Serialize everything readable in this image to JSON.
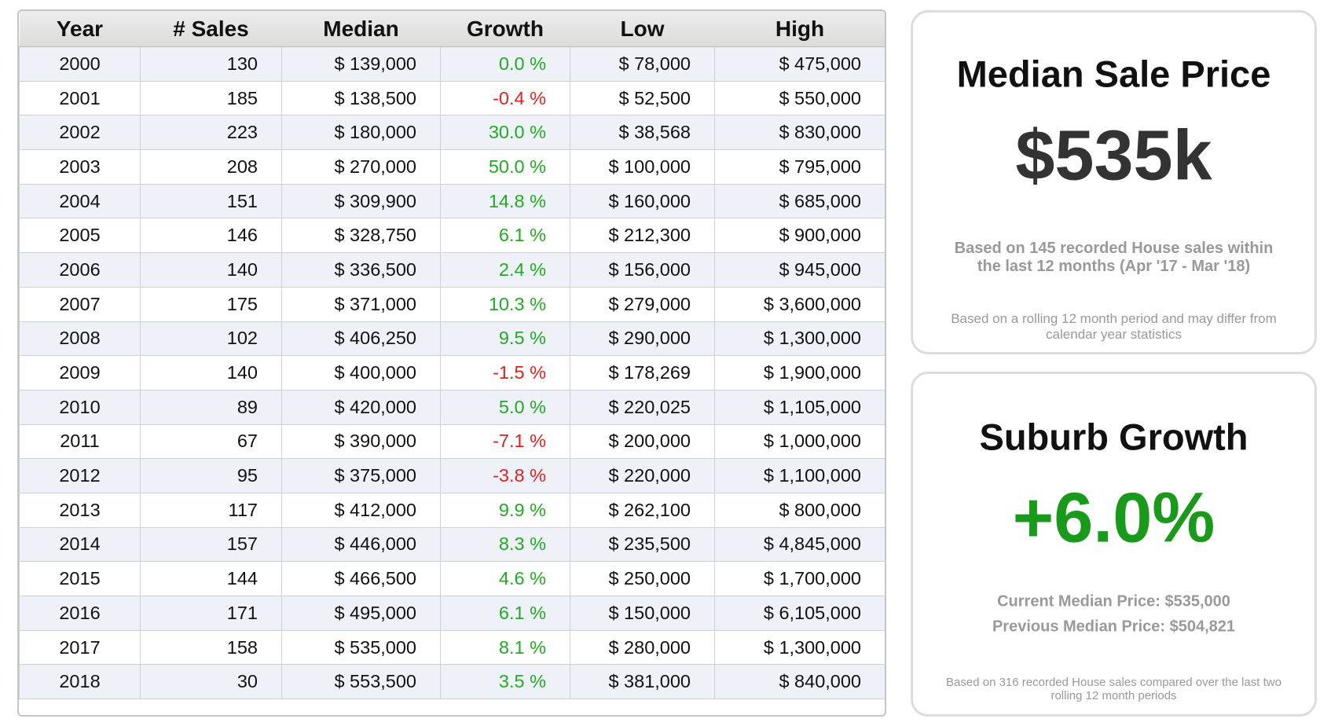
{
  "table": {
    "headers": [
      "Year",
      "# Sales",
      "Median",
      "Growth",
      "Low",
      "High"
    ],
    "rows": [
      [
        "2000",
        "130",
        "$ 139,000",
        "0.0 %",
        "$ 78,000",
        "$ 475,000"
      ],
      [
        "2001",
        "185",
        "$ 138,500",
        "-0.4 %",
        "$ 52,500",
        "$ 550,000"
      ],
      [
        "2002",
        "223",
        "$ 180,000",
        "30.0 %",
        "$ 38,568",
        "$ 830,000"
      ],
      [
        "2003",
        "208",
        "$ 270,000",
        "50.0 %",
        "$ 100,000",
        "$ 795,000"
      ],
      [
        "2004",
        "151",
        "$ 309,900",
        "14.8 %",
        "$ 160,000",
        "$ 685,000"
      ],
      [
        "2005",
        "146",
        "$ 328,750",
        "6.1 %",
        "$ 212,300",
        "$ 900,000"
      ],
      [
        "2006",
        "140",
        "$ 336,500",
        "2.4 %",
        "$ 156,000",
        "$ 945,000"
      ],
      [
        "2007",
        "175",
        "$ 371,000",
        "10.3 %",
        "$ 279,000",
        "$ 3,600,000"
      ],
      [
        "2008",
        "102",
        "$ 406,250",
        "9.5 %",
        "$ 290,000",
        "$ 1,300,000"
      ],
      [
        "2009",
        "140",
        "$ 400,000",
        "-1.5 %",
        "$ 178,269",
        "$ 1,900,000"
      ],
      [
        "2010",
        "89",
        "$ 420,000",
        "5.0 %",
        "$ 220,025",
        "$ 1,105,000"
      ],
      [
        "2011",
        "67",
        "$ 390,000",
        "-7.1 %",
        "$ 200,000",
        "$ 1,000,000"
      ],
      [
        "2012",
        "95",
        "$ 375,000",
        "-3.8 %",
        "$ 220,000",
        "$ 1,100,000"
      ],
      [
        "2013",
        "117",
        "$ 412,000",
        "9.9 %",
        "$ 262,100",
        "$ 800,000"
      ],
      [
        "2014",
        "157",
        "$ 446,000",
        "8.3 %",
        "$ 235,500",
        "$ 4,845,000"
      ],
      [
        "2015",
        "144",
        "$ 466,500",
        "4.6 %",
        "$ 250,000",
        "$ 1,700,000"
      ],
      [
        "2016",
        "171",
        "$ 495,000",
        "6.1 %",
        "$ 150,000",
        "$ 6,105,000"
      ],
      [
        "2017",
        "158",
        "$ 535,000",
        "8.1 %",
        "$ 280,000",
        "$ 1,300,000"
      ],
      [
        "2018",
        "30",
        "$ 553,500",
        "3.5 %",
        "$ 381,000",
        "$ 840,000"
      ]
    ]
  },
  "median_card": {
    "title": "Median Sale Price",
    "value": "$535k",
    "note": "Based on 145 recorded House sales within the last 12 months (Apr '17 - Mar '18)",
    "footnote": "Based on a rolling 12 month period and may differ from calendar year statistics"
  },
  "growth_card": {
    "title": "Suburb Growth",
    "value": "+6.0%",
    "current": "Current Median Price: $535,000",
    "previous": "Previous Median Price: $504,821",
    "footnote": "Based on 316 recorded House sales compared over the last two rolling 12 month periods"
  }
}
